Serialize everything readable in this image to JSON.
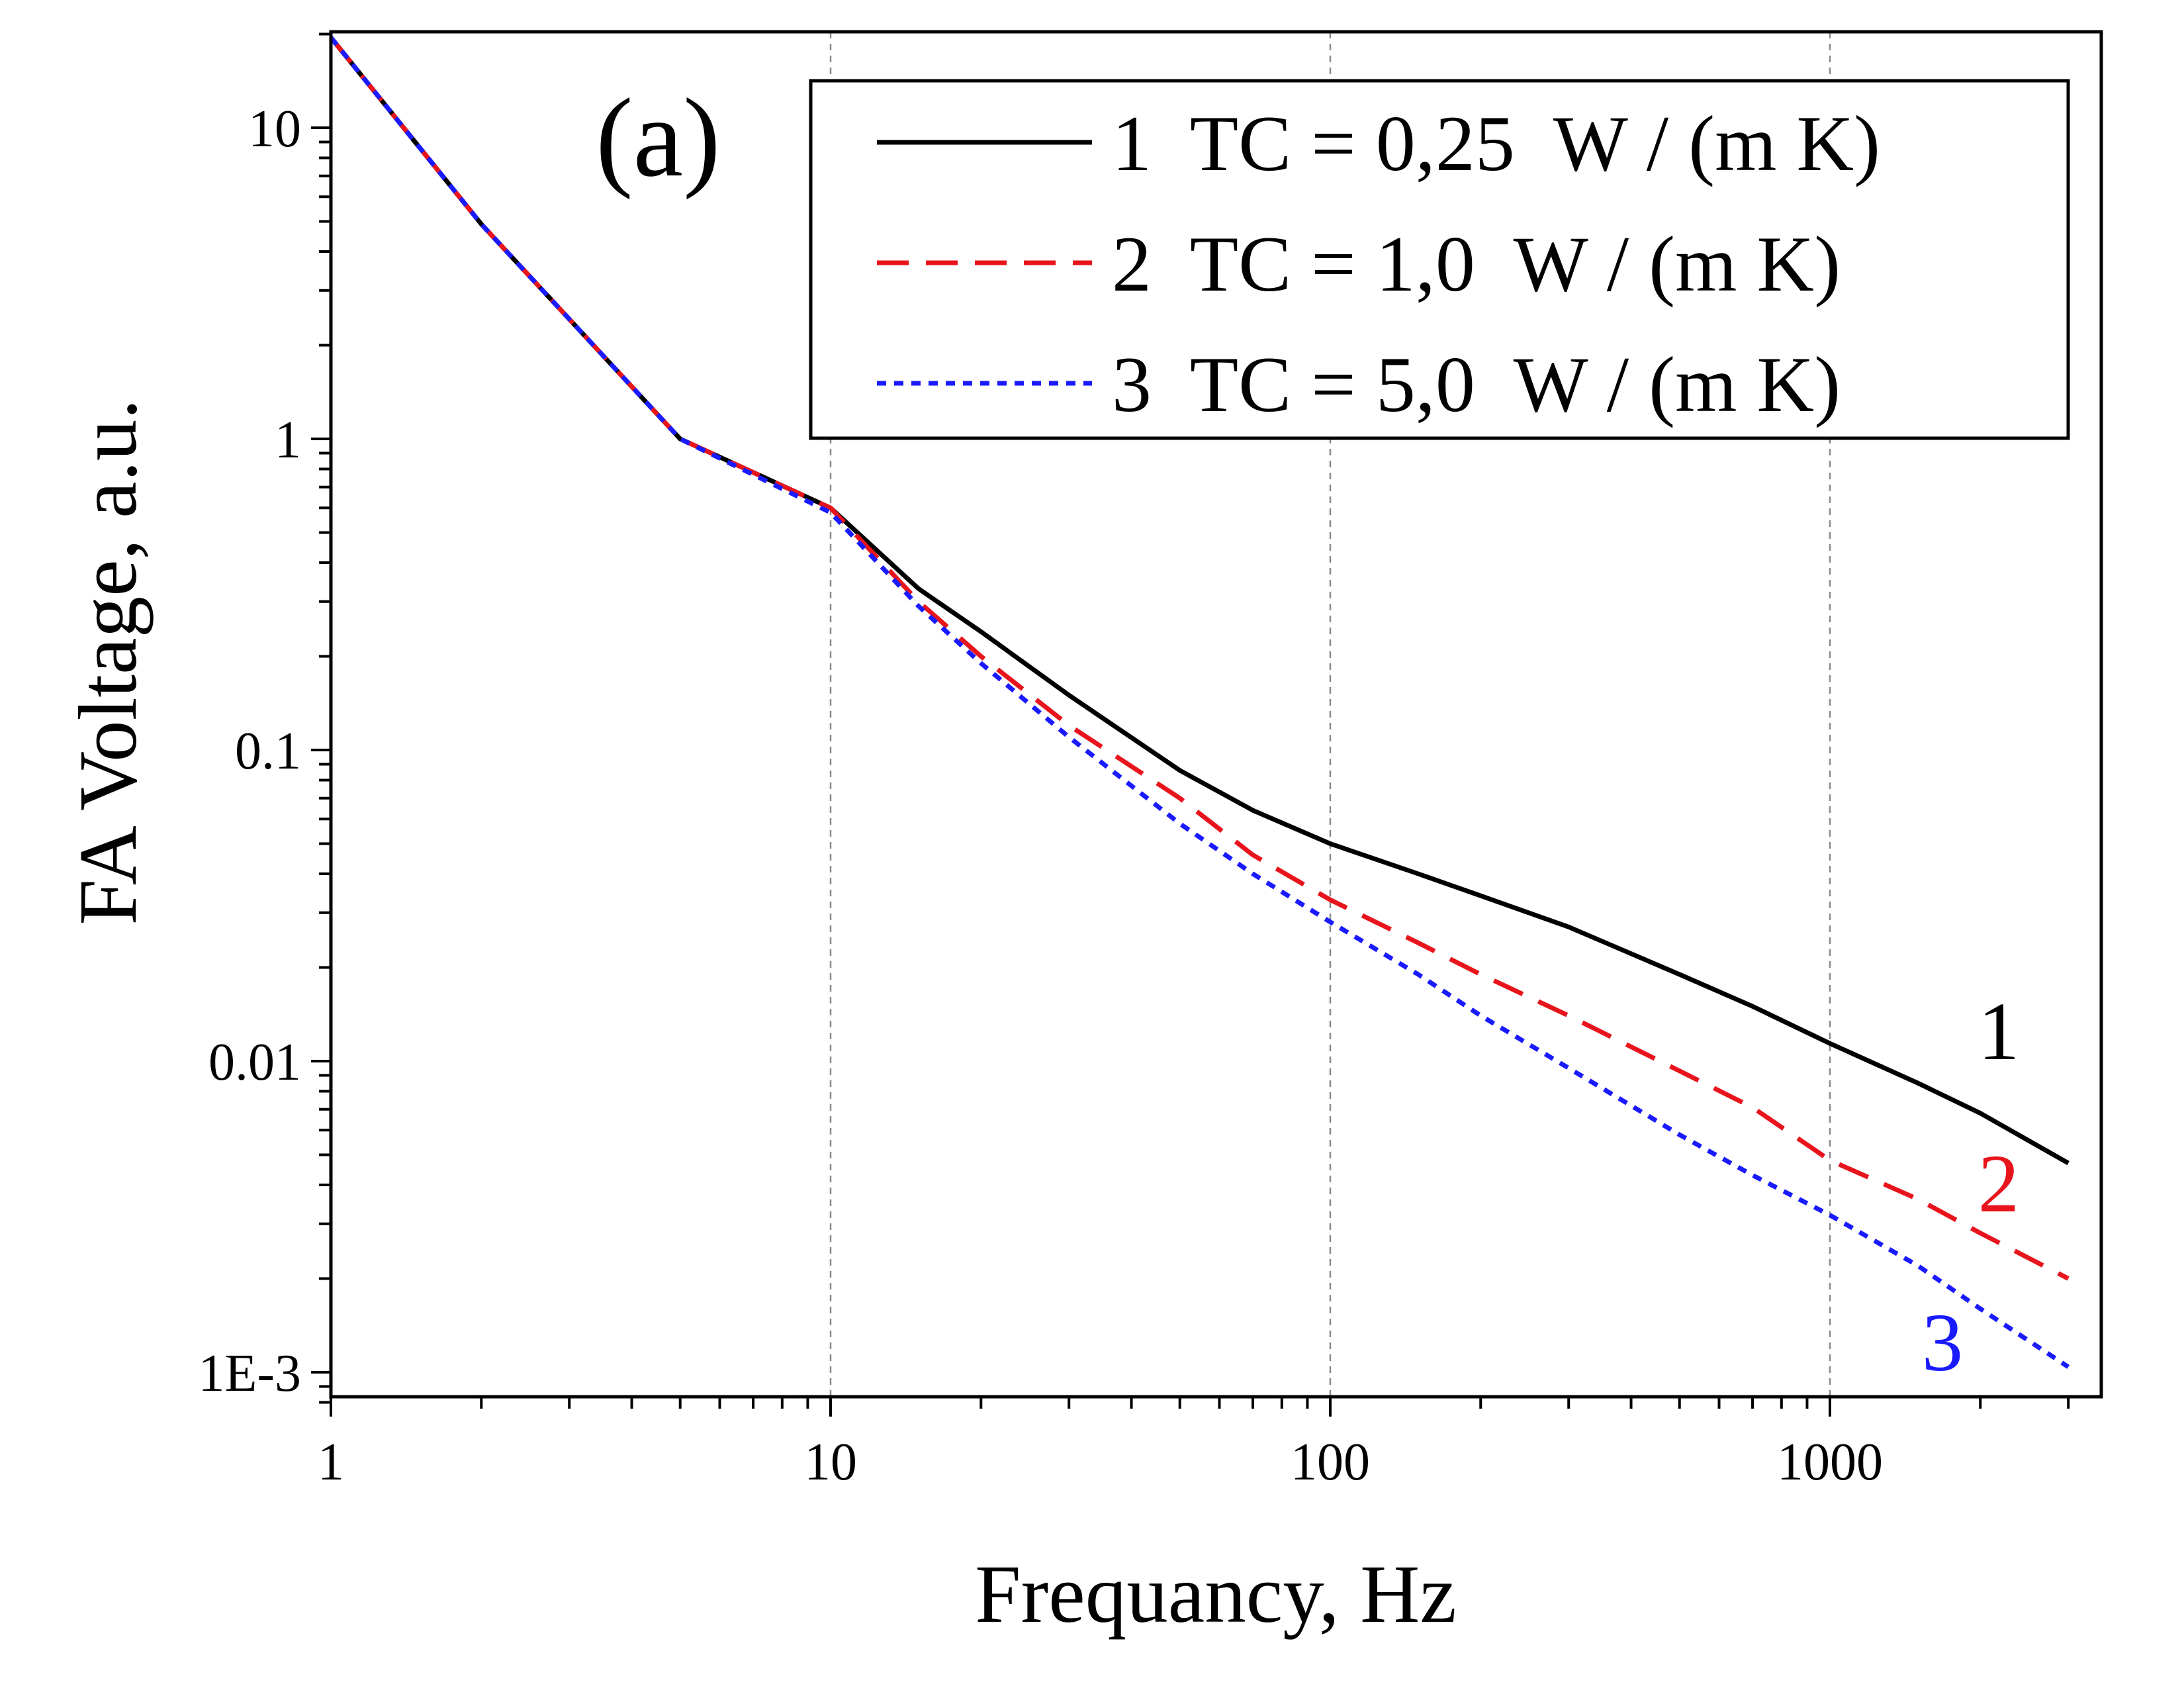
{
  "chart_data": {
    "type": "line",
    "panel_label": "(a)",
    "xlabel": "Frequancy, Hz",
    "ylabel": "FA Voltage, a.u.",
    "xscale": "log",
    "yscale": "log",
    "xlim": [
      1,
      3000
    ],
    "ylim": [
      0.0008,
      20
    ],
    "xticks": [
      1,
      10,
      100,
      1000
    ],
    "xtick_labels": [
      "1",
      "10",
      "100",
      "1000"
    ],
    "yticks": [
      0.001,
      0.01,
      0.1,
      1,
      10
    ],
    "ytick_labels": [
      "1E-3",
      "0.01",
      "0.1",
      "1",
      "10"
    ],
    "grid": "vertical dashed at major x ticks",
    "legend_position": "top-right",
    "series": [
      {
        "name": "1  TC = 0,25  W / (m K)",
        "end_label": "1",
        "color": "#000000",
        "dash": "solid",
        "points": [
          [
            1,
            19.5
          ],
          [
            2,
            4.9
          ],
          [
            5,
            1.0
          ],
          [
            10,
            0.6
          ],
          [
            15,
            0.33
          ],
          [
            20,
            0.24
          ],
          [
            30,
            0.15
          ],
          [
            50,
            0.086
          ],
          [
            70,
            0.064
          ],
          [
            100,
            0.05
          ],
          [
            150,
            0.04
          ],
          [
            200,
            0.034
          ],
          [
            300,
            0.027
          ],
          [
            500,
            0.019
          ],
          [
            700,
            0.015
          ],
          [
            1000,
            0.0114
          ],
          [
            1500,
            0.0085
          ],
          [
            2000,
            0.0068
          ],
          [
            3000,
            0.0047
          ]
        ]
      },
      {
        "name": "2  TC = 1,0  W / (m K)",
        "end_label": "2",
        "color": "#e8141c",
        "dash": "dashed",
        "points": [
          [
            1,
            19.5
          ],
          [
            2,
            4.9
          ],
          [
            5,
            1.0
          ],
          [
            10,
            0.6
          ],
          [
            15,
            0.3
          ],
          [
            20,
            0.2
          ],
          [
            30,
            0.12
          ],
          [
            50,
            0.07
          ],
          [
            70,
            0.046
          ],
          [
            100,
            0.033
          ],
          [
            150,
            0.024
          ],
          [
            200,
            0.019
          ],
          [
            300,
            0.014
          ],
          [
            500,
            0.0093
          ],
          [
            700,
            0.0071
          ],
          [
            1000,
            0.0048
          ],
          [
            1500,
            0.0036
          ],
          [
            2000,
            0.0028
          ],
          [
            3000,
            0.002
          ]
        ]
      },
      {
        "name": "3  TC = 5,0  W / (m K)",
        "end_label": "3",
        "color": "#1a1aff",
        "dash": "dotted",
        "points": [
          [
            1,
            19.5
          ],
          [
            2,
            4.9
          ],
          [
            5,
            1.0
          ],
          [
            10,
            0.58
          ],
          [
            15,
            0.29
          ],
          [
            20,
            0.19
          ],
          [
            30,
            0.11
          ],
          [
            50,
            0.058
          ],
          [
            70,
            0.04
          ],
          [
            100,
            0.028
          ],
          [
            150,
            0.019
          ],
          [
            200,
            0.014
          ],
          [
            300,
            0.0095
          ],
          [
            500,
            0.0058
          ],
          [
            700,
            0.0043
          ],
          [
            1000,
            0.0032
          ],
          [
            1500,
            0.0022
          ],
          [
            2000,
            0.0016
          ],
          [
            3000,
            0.00104
          ]
        ]
      }
    ]
  }
}
